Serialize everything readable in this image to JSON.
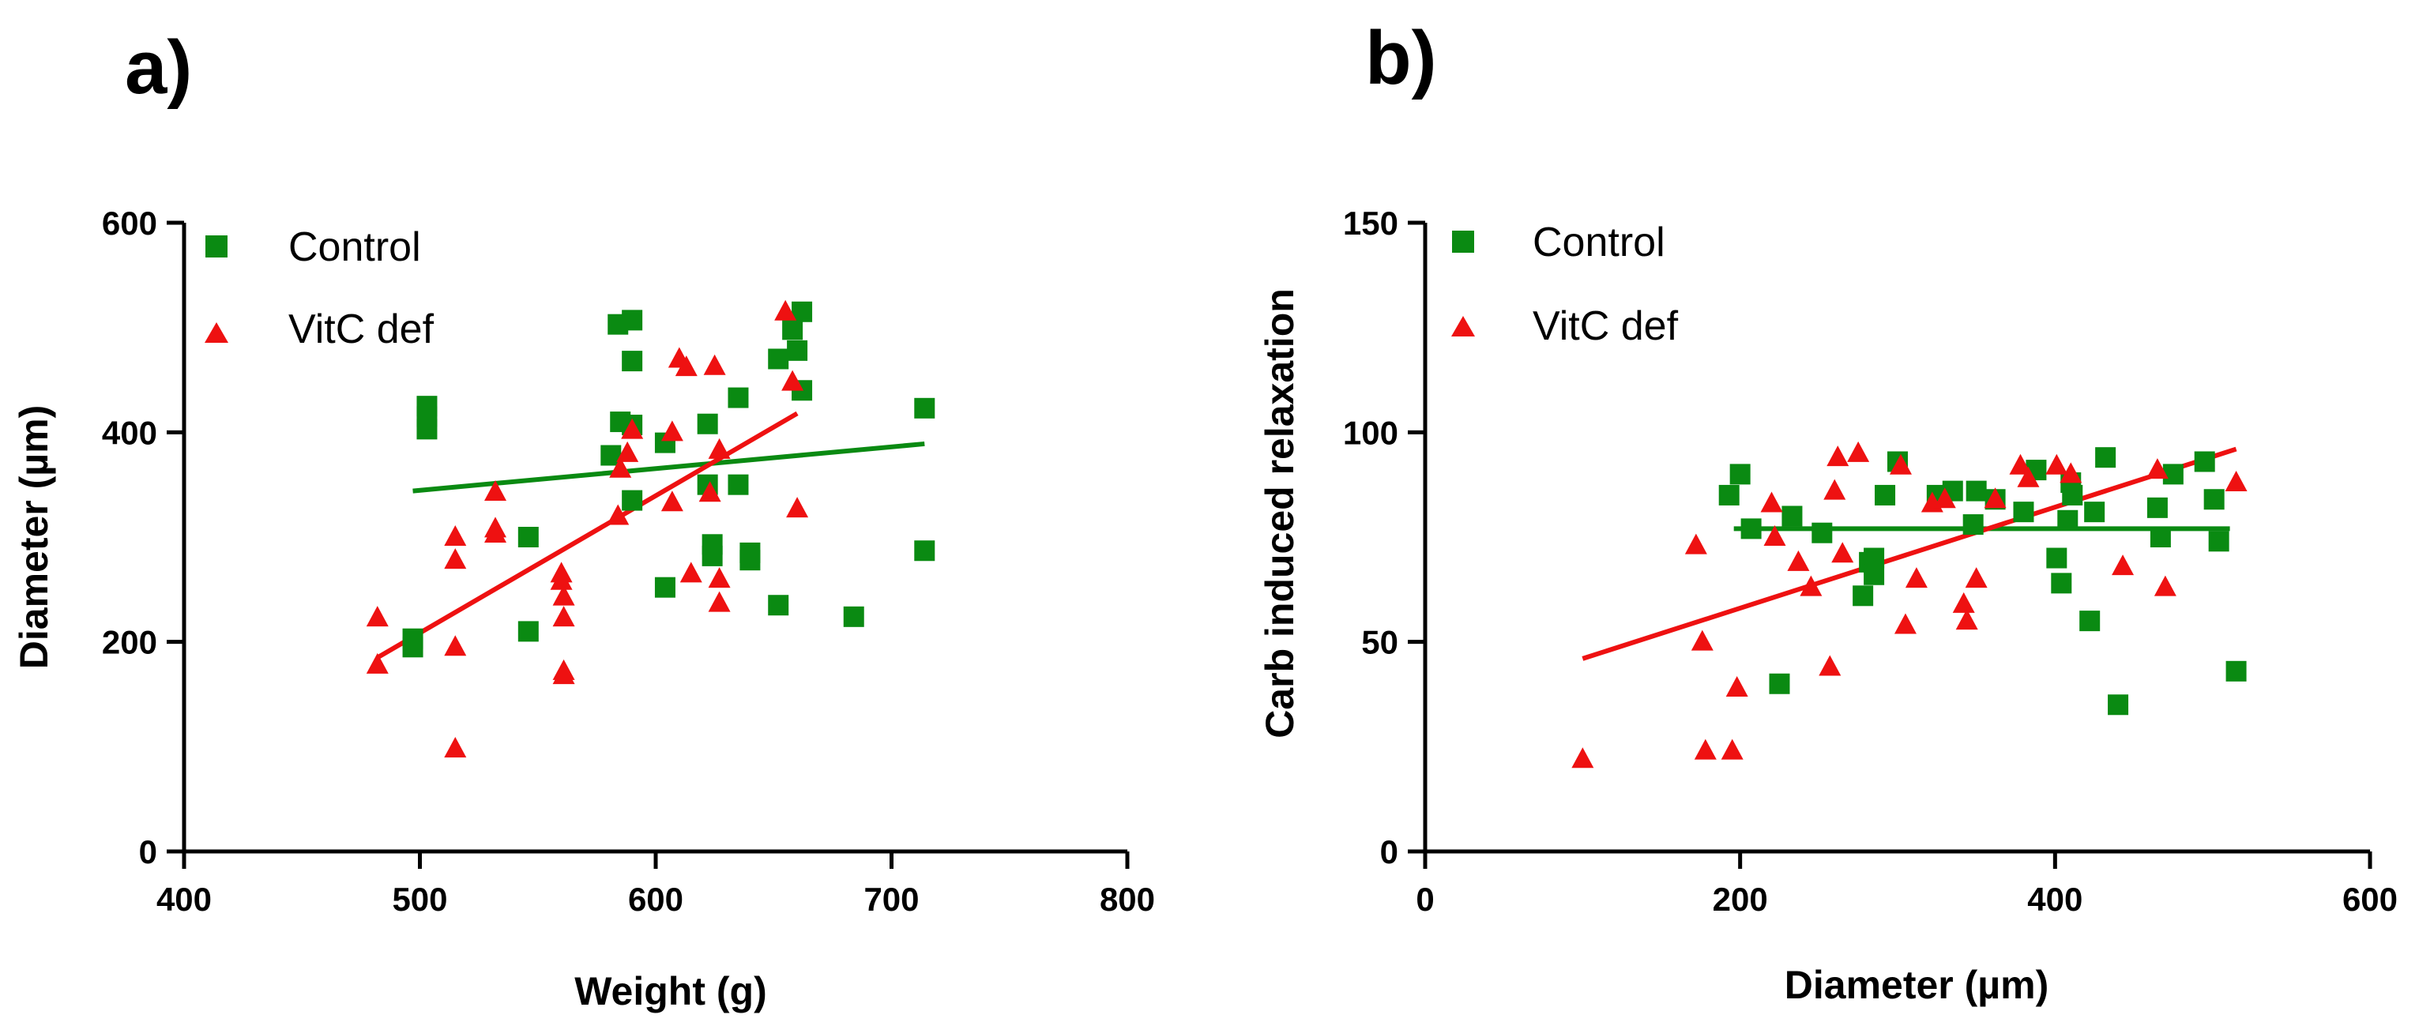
{
  "colors": {
    "control": "#0a8a12",
    "vitc": "#ee1111",
    "axis": "#000000"
  },
  "chart_data": [
    {
      "panel_label": "a)",
      "type": "scatter",
      "xlabel": "Weight (g)",
      "ylabel": "Diameter (µm)",
      "xlim": [
        400,
        800
      ],
      "ylim": [
        0,
        600
      ],
      "xticks": [
        "400",
        "500",
        "600",
        "700",
        "800"
      ],
      "yticks": [
        "0",
        "200",
        "400",
        "600"
      ],
      "legend": {
        "position": "top-left",
        "entries": [
          "Control",
          "VitC def"
        ]
      },
      "series": [
        {
          "name": "Control",
          "marker": "square",
          "color_key": "control",
          "points": [
            [
              497,
              195
            ],
            [
              497,
              203
            ],
            [
              503,
              403
            ],
            [
              503,
              415
            ],
            [
              503,
              425
            ],
            [
              546,
              300
            ],
            [
              546,
              210
            ],
            [
              581,
              378
            ],
            [
              584,
              503
            ],
            [
              585,
              410
            ],
            [
              590,
              507
            ],
            [
              590,
              468
            ],
            [
              590,
              407
            ],
            [
              590,
              335
            ],
            [
              604,
              390
            ],
            [
              604,
              252
            ],
            [
              622,
              408
            ],
            [
              622,
              350
            ],
            [
              624,
              293
            ],
            [
              624,
              282
            ],
            [
              635,
              433
            ],
            [
              635,
              350
            ],
            [
              640,
              285
            ],
            [
              640,
              278
            ],
            [
              652,
              470
            ],
            [
              652,
              235
            ],
            [
              658,
              498
            ],
            [
              660,
              478
            ],
            [
              662,
              515
            ],
            [
              662,
              440
            ],
            [
              684,
              224
            ],
            [
              714,
              423
            ],
            [
              714,
              287
            ]
          ]
        },
        {
          "name": "VitC def",
          "marker": "triangle",
          "color_key": "vitc",
          "points": [
            [
              482,
              223
            ],
            [
              482,
              178
            ],
            [
              515,
              300
            ],
            [
              515,
              278
            ],
            [
              515,
              195
            ],
            [
              515,
              98
            ],
            [
              532,
              343
            ],
            [
              532,
              308
            ],
            [
              532,
              303
            ],
            [
              560,
              265
            ],
            [
              560,
              258
            ],
            [
              561,
              243
            ],
            [
              561,
              223
            ],
            [
              561,
              172
            ],
            [
              561,
              168
            ],
            [
              584,
              320
            ],
            [
              585,
              365
            ],
            [
              588,
              380
            ],
            [
              590,
              402
            ],
            [
              607,
              333
            ],
            [
              607,
              400
            ],
            [
              610,
              470
            ],
            [
              613,
              462
            ],
            [
              615,
              265
            ],
            [
              623,
              342
            ],
            [
              625,
              463
            ],
            [
              627,
              383
            ],
            [
              627,
              260
            ],
            [
              627,
              237
            ],
            [
              655,
              515
            ],
            [
              658,
              448
            ],
            [
              660,
              327
            ]
          ]
        }
      ],
      "fits": [
        {
          "name": "Control",
          "color_key": "control",
          "x": [
            497,
            714
          ],
          "y": [
            344,
            389
          ]
        },
        {
          "name": "VitC def",
          "color_key": "vitc",
          "x": [
            482,
            660
          ],
          "y": [
            185,
            418
          ]
        }
      ]
    },
    {
      "panel_label": "b)",
      "type": "scatter",
      "xlabel": "Diameter (µm)",
      "ylabel": "Carb induced relaxation",
      "xlim": [
        0,
        600
      ],
      "ylim": [
        0,
        150
      ],
      "xticks": [
        "0",
        "200",
        "400",
        "600"
      ],
      "yticks": [
        "0",
        "50",
        "100",
        "150"
      ],
      "legend": {
        "position": "top-left",
        "entries": [
          "Control",
          "VitC def"
        ]
      },
      "series": [
        {
          "name": "Control",
          "marker": "square",
          "color_key": "control",
          "points": [
            [
              193,
              85
            ],
            [
              200,
              90
            ],
            [
              207,
              77
            ],
            [
              225,
              40
            ],
            [
              233,
              80
            ],
            [
              252,
              76
            ],
            [
              278,
              61
            ],
            [
              282,
              69
            ],
            [
              285,
              70
            ],
            [
              285,
              66
            ],
            [
              292,
              85
            ],
            [
              300,
              93
            ],
            [
              325,
              85
            ],
            [
              335,
              86
            ],
            [
              348,
              78
            ],
            [
              350,
              86
            ],
            [
              362,
              84
            ],
            [
              380,
              81
            ],
            [
              388,
              91
            ],
            [
              401,
              70
            ],
            [
              404,
              64
            ],
            [
              408,
              79
            ],
            [
              410,
              88
            ],
            [
              411,
              85
            ],
            [
              422,
              55
            ],
            [
              425,
              81
            ],
            [
              432,
              94
            ],
            [
              440,
              35
            ],
            [
              465,
              82
            ],
            [
              467,
              75
            ],
            [
              475,
              90
            ],
            [
              495,
              93
            ],
            [
              501,
              84
            ],
            [
              504,
              74
            ],
            [
              515,
              43
            ]
          ]
        },
        {
          "name": "VitC def",
          "marker": "triangle",
          "color_key": "vitc",
          "points": [
            [
              100,
              22
            ],
            [
              172,
              73
            ],
            [
              176,
              50
            ],
            [
              178,
              24
            ],
            [
              195,
              24
            ],
            [
              198,
              39
            ],
            [
              220,
              83
            ],
            [
              222,
              75
            ],
            [
              237,
              69
            ],
            [
              245,
              63
            ],
            [
              257,
              44
            ],
            [
              260,
              86
            ],
            [
              262,
              94
            ],
            [
              265,
              71
            ],
            [
              275,
              95
            ],
            [
              302,
              92
            ],
            [
              305,
              54
            ],
            [
              312,
              65
            ],
            [
              322,
              83
            ],
            [
              330,
              84
            ],
            [
              342,
              59
            ],
            [
              344,
              55
            ],
            [
              350,
              65
            ],
            [
              362,
              84
            ],
            [
              378,
              92
            ],
            [
              383,
              89
            ],
            [
              401,
              92
            ],
            [
              410,
              90
            ],
            [
              443,
              68
            ],
            [
              465,
              91
            ],
            [
              470,
              63
            ],
            [
              515,
              88
            ]
          ]
        }
      ],
      "fits": [
        {
          "name": "Control",
          "color_key": "control",
          "x": [
            196,
            511
          ],
          "y": [
            77,
            77
          ]
        },
        {
          "name": "VitC def",
          "color_key": "vitc",
          "x": [
            100,
            515
          ],
          "y": [
            46,
            96
          ]
        }
      ]
    }
  ]
}
